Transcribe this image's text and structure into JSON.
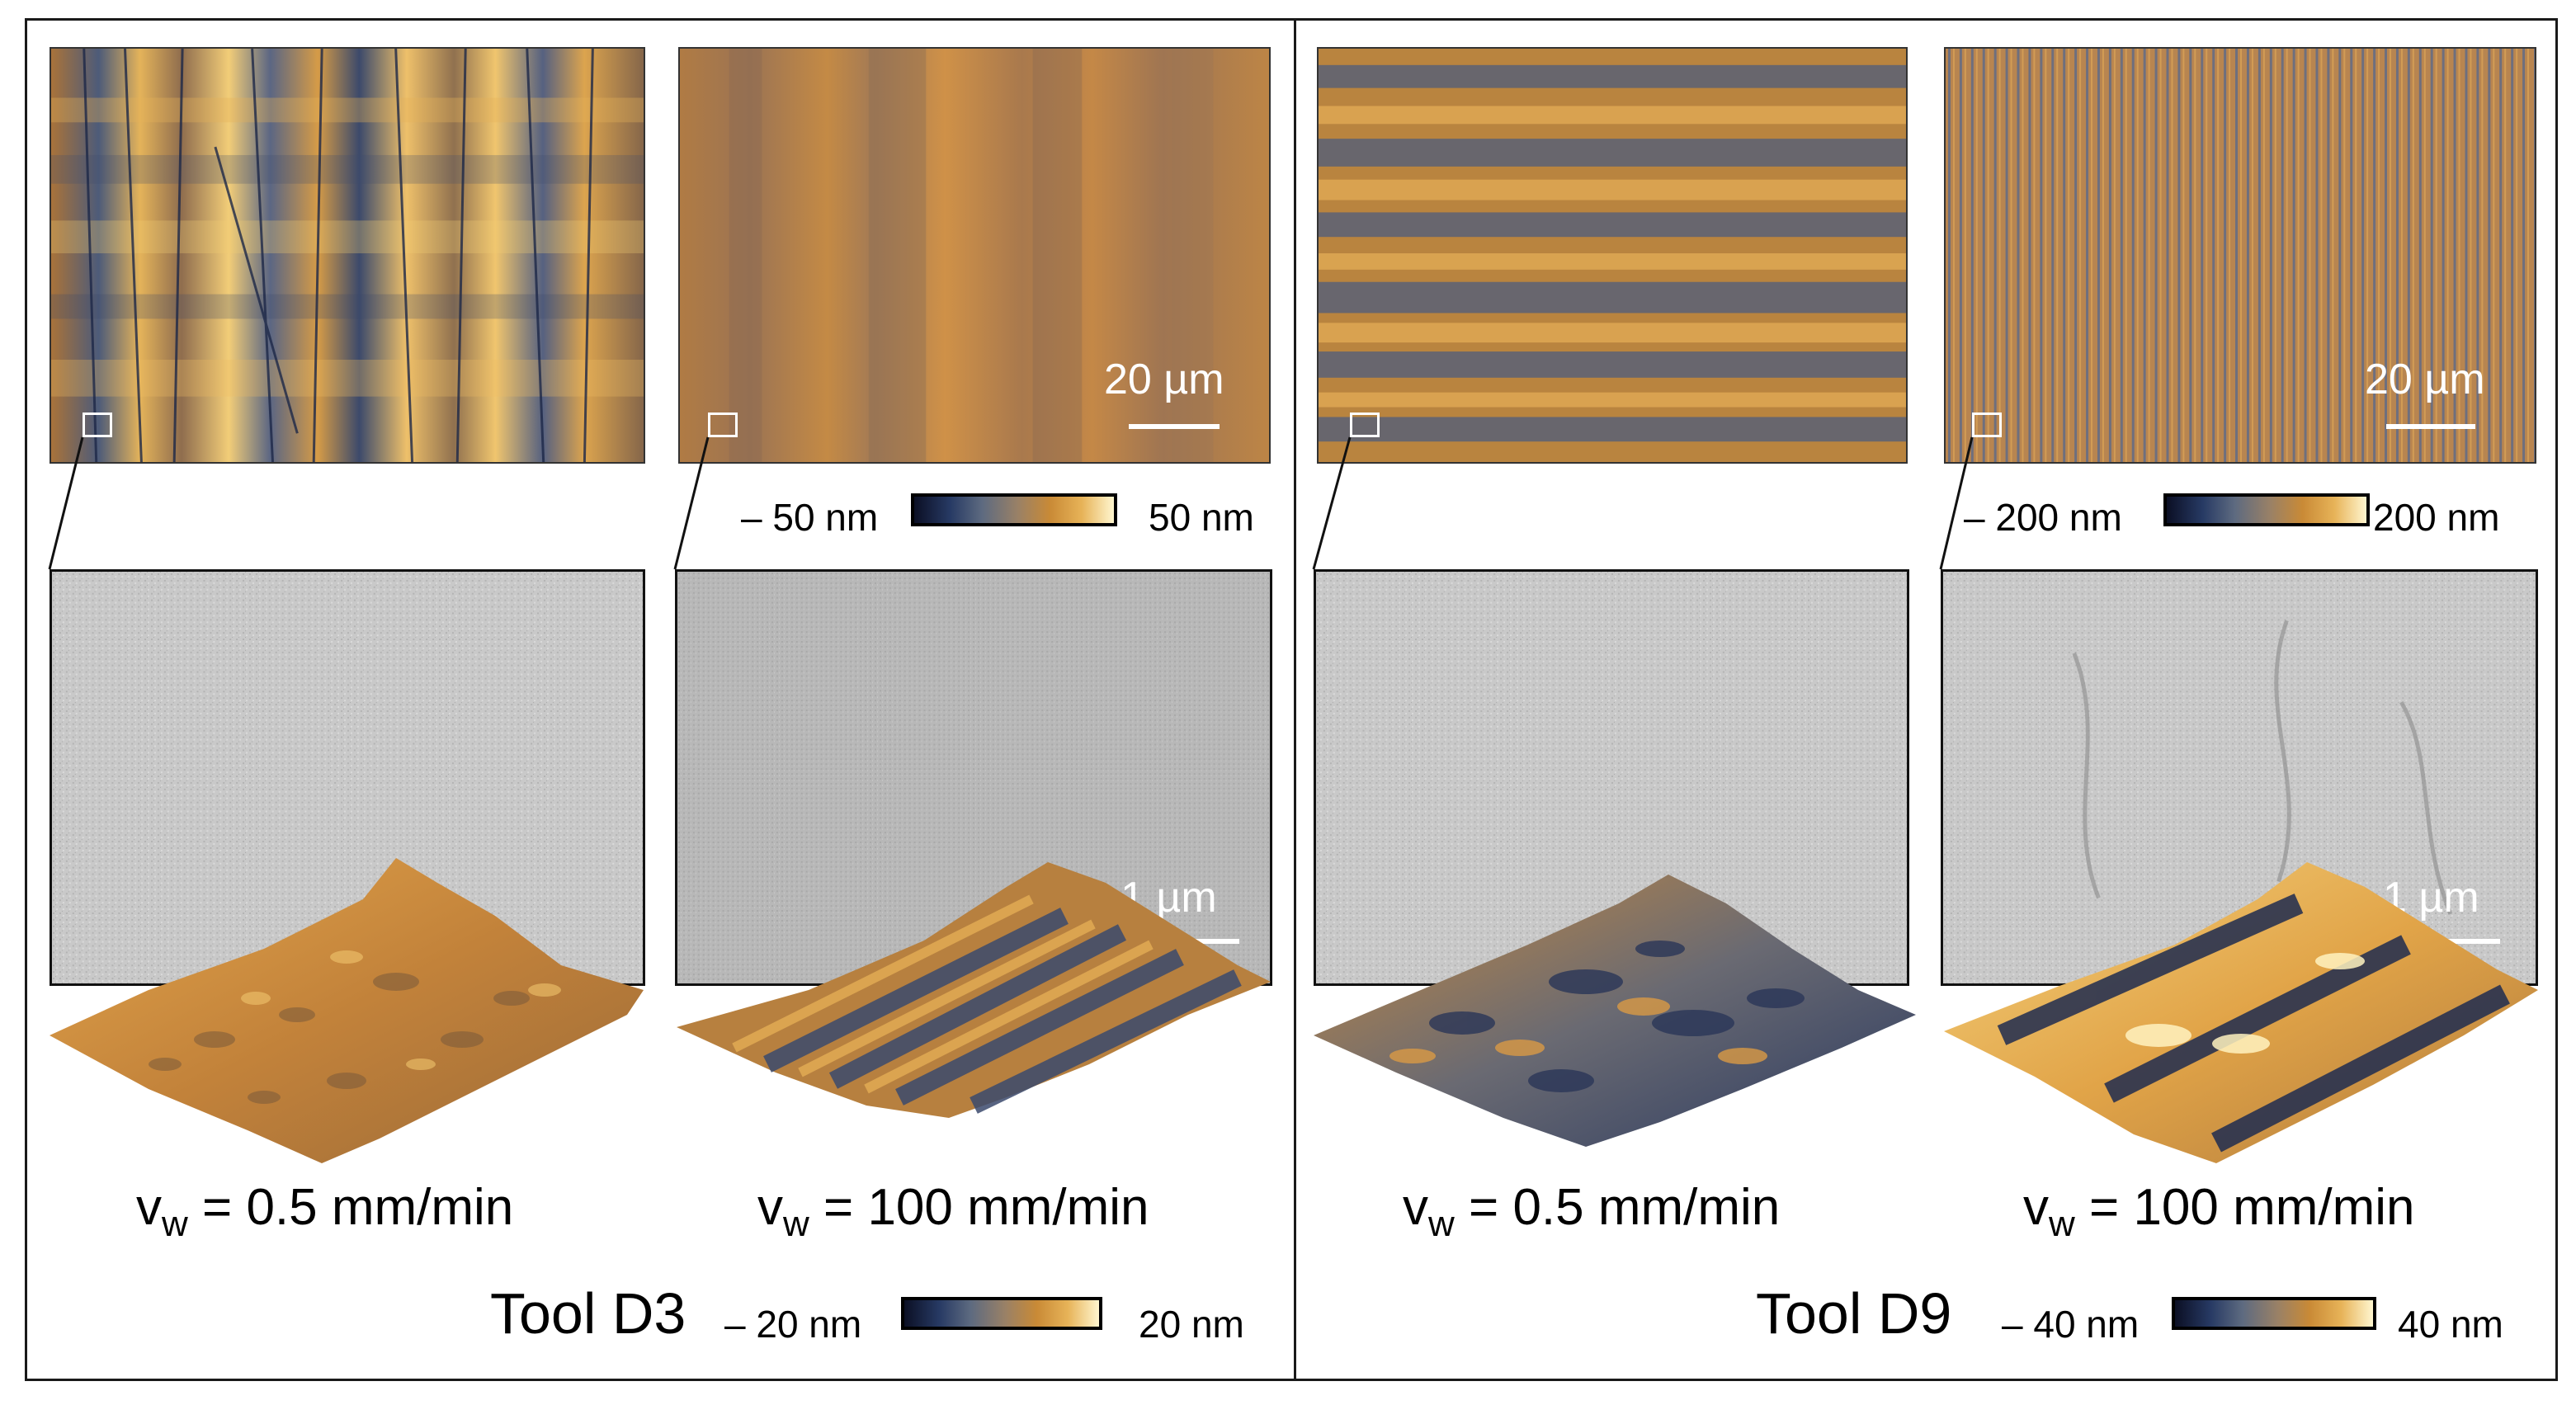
{
  "panels": [
    {
      "tool_label": "Tool D3",
      "afm_colorbar": {
        "min_label": "– 50 nm",
        "max_label": "50 nm"
      },
      "afm_scalebar": "20 µm",
      "sem_scalebar": "1 µm",
      "surface_colorbar": {
        "min_label": "– 20 nm",
        "max_label": "20 nm"
      },
      "conditions": [
        {
          "prefix": "v",
          "subscript": "w",
          "value": " = 0.5 mm/min"
        },
        {
          "prefix": "v",
          "subscript": "w",
          "value": " = 100 mm/min"
        }
      ]
    },
    {
      "tool_label": "Tool D9",
      "afm_colorbar": {
        "min_label": "– 200 nm",
        "max_label": "200 nm"
      },
      "afm_scalebar": "20 µm",
      "sem_scalebar": "1 µm",
      "surface_colorbar": {
        "min_label": "– 40 nm",
        "max_label": "40 nm"
      },
      "conditions": [
        {
          "prefix": "v",
          "subscript": "w",
          "value": " = 0.5 mm/min"
        },
        {
          "prefix": "v",
          "subscript": "w",
          "value": " = 100 mm/min"
        }
      ]
    }
  ],
  "colors": {
    "dark": "#0b0f24",
    "mid_blue": "#5d6a80",
    "orange": "#c98a36",
    "light": "#fff6cf"
  }
}
